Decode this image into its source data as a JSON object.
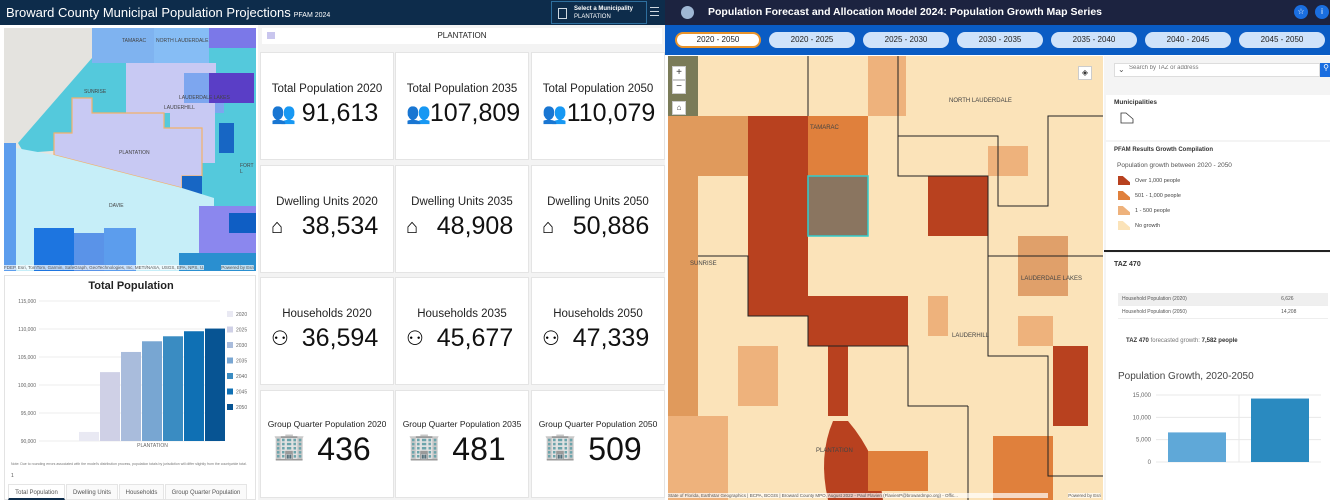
{
  "left_app": {
    "title": "Broward County Municipal Population Projections",
    "title_suffix": "PFAM 2024",
    "municipality_selector": {
      "label": "Select a Municipality",
      "value": "PLANTATION"
    },
    "map": {
      "labels": [
        "TAMARAC",
        "NORTH LAUDERDALE",
        "SUNRISE",
        "LAUDERDALE LAKES",
        "LAUDERHILL",
        "PLANTATION",
        "FORT L",
        "DAVIE"
      ],
      "attribution": "FDEP, Esri, TomTom, Garmin, SafeGraph, GeoTechnologies, Inc, METI/NASA, USGS, EPA, NPS, U...",
      "powered": "Powered by Esri"
    },
    "selected_title": "PLANTATION",
    "cards": [
      {
        "label": "Total Population 2020",
        "value": "91,613",
        "icon": "people-icon"
      },
      {
        "label": "Total Population 2035",
        "value": "107,809",
        "icon": "people-icon"
      },
      {
        "label": "Total Population 2050",
        "value": "110,079",
        "icon": "people-icon"
      },
      {
        "label": "Dwelling Units 2020",
        "value": "38,534",
        "icon": "house-icon"
      },
      {
        "label": "Dwelling Units 2035",
        "value": "48,908",
        "icon": "house-icon"
      },
      {
        "label": "Dwelling Units 2050",
        "value": "50,886",
        "icon": "house-icon"
      },
      {
        "label": "Households 2020",
        "value": "36,594",
        "icon": "household-icon"
      },
      {
        "label": "Households 2035",
        "value": "45,677",
        "icon": "household-icon"
      },
      {
        "label": "Households 2050",
        "value": "47,339",
        "icon": "household-icon"
      },
      {
        "label": "Group Quarter Population 2020",
        "value": "436",
        "icon": "building-people-icon"
      },
      {
        "label": "Group Quarter Population 2035",
        "value": "481",
        "icon": "building-people-icon"
      },
      {
        "label": "Group Quarter Population 2050",
        "value": "509",
        "icon": "building-people-icon"
      }
    ],
    "note": "Note: Due to rounding errors associated with the model's distribution process, population totals by jurisdiction will differ slightly from the countywide total.",
    "footnote_mark": "1",
    "bottom_tabs": [
      "Total Population",
      "Dwelling Units",
      "Households",
      "Group Quarter Population"
    ]
  },
  "chart_data": [
    {
      "type": "bar",
      "title": "Total Population",
      "categories": [
        "PLANTATION"
      ],
      "series": [
        {
          "name": "2020",
          "values": [
            91613
          ],
          "color": "#e9e9f3"
        },
        {
          "name": "2025",
          "values": [
            102300
          ],
          "color": "#cfd0e6"
        },
        {
          "name": "2030",
          "values": [
            105900
          ],
          "color": "#a9bcdc"
        },
        {
          "name": "2035",
          "values": [
            107809
          ],
          "color": "#78a6d2"
        },
        {
          "name": "2040",
          "values": [
            108700
          ],
          "color": "#3a8cc2"
        },
        {
          "name": "2045",
          "values": [
            109600
          ],
          "color": "#0f70b4"
        },
        {
          "name": "2050",
          "values": [
            110079
          ],
          "color": "#075493"
        }
      ],
      "ylim": [
        90000,
        115000
      ],
      "yticks": [
        "90,000",
        "95,000",
        "100,000",
        "105,000",
        "110,000",
        "115,000"
      ],
      "legend": "right",
      "grid": true
    },
    {
      "type": "bar",
      "title": "Population Growth, 2020-2050",
      "categories": [
        "Household Population (2020)",
        "Household Population (2050)"
      ],
      "values": [
        6626,
        14208
      ],
      "colors": [
        "#5fa8d8",
        "#2a8ac0"
      ],
      "ylim": [
        0,
        15000
      ],
      "yticks": [
        "0",
        "5,000",
        "10,000",
        "15,000"
      ],
      "grid": true
    }
  ],
  "right_app": {
    "title": "Population Forecast and Allocation Model 2024: Population Growth Map Series",
    "tabs": [
      "2020 - 2050",
      "2020 - 2025",
      "2025 - 2030",
      "2030 - 2035",
      "2035 - 2040",
      "2040 - 2045",
      "2045 - 2050"
    ],
    "active_tab": "2020 - 2050",
    "map": {
      "labels": [
        "TAMARAC",
        "NORTH LAUDERDALE",
        "SUNRISE",
        "LAUDERDALE LAKES",
        "LAUDERHILL",
        "PLANTATION"
      ],
      "attribution": "State of Florida, Earthstar Geographics | BCPA, BCGIS | Broward County MPO, August 2022 - Paul Flavien (FlavienP@browardmpo.org) - Offic...",
      "powered": "Powered by Esri"
    },
    "search_placeholder": "Search by TAZ or address",
    "legend": {
      "municipalities_title": "Municipalities",
      "layer_title": "PFAM Results Growth Compilation",
      "subtitle": "Population growth between 2020 - 2050",
      "items": [
        {
          "label": "Over 1,000 people",
          "color": "#b8411f"
        },
        {
          "label": "501 - 1,000 people",
          "color": "#e0803c"
        },
        {
          "label": "1 - 500 people",
          "color": "#eeb27c"
        },
        {
          "label": "No growth",
          "color": "#fbe3b9"
        }
      ]
    },
    "popup": {
      "title": "TAZ 470",
      "rows": [
        {
          "k": "Household Population (2020)",
          "v": "6,626"
        },
        {
          "k": "Household Population (2050)",
          "v": "14,208"
        }
      ],
      "growth_prefix": "TAZ 470",
      "growth_text": "forecasted growth:",
      "growth_value": "7,582 people"
    }
  }
}
